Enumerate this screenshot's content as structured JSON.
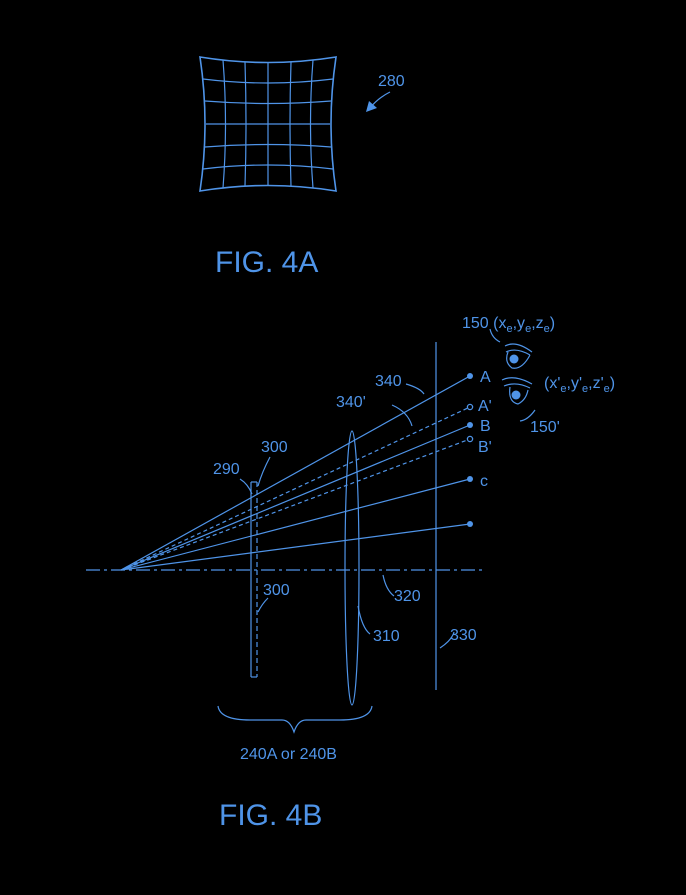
{
  "fig4a": {
    "title": "FIG. 4A",
    "ref_280": "280"
  },
  "fig4b": {
    "title": "FIG. 4B",
    "eye_main": {
      "ref": "150",
      "coord_open": "(x",
      "e1": "e",
      "c1": ",y",
      "e2": "e",
      "c2": ",z",
      "e3": "e",
      "close": ")"
    },
    "eye_prime": {
      "ref": "150'",
      "coord_open": "(x'",
      "e1": "e",
      "c1": ",y'",
      "e2": "e",
      "c2": ",z'",
      "e3": "e",
      "close": ")"
    },
    "ray_labels": {
      "A": "A",
      "A_prime": "A'",
      "B": "B",
      "B_prime": "B'",
      "C": "c"
    },
    "ref_340": "340",
    "ref_340_prime": "340'",
    "ref_290": "290",
    "ref_300_top": "300",
    "ref_300_bottom": "300",
    "ref_310": "310",
    "ref_320": "320",
    "ref_330": "330",
    "bracket_label": "240A or 240B"
  }
}
